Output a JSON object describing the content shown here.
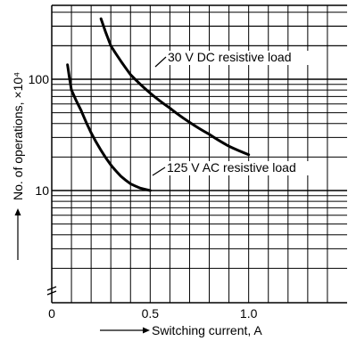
{
  "chart_data": {
    "type": "line",
    "xlabel": "Switching current, A",
    "ylabel": "No. of operations, ×10⁴",
    "x_scale": "linear",
    "y_scale": "log",
    "xlim": [
      0,
      1.5
    ],
    "ylim": [
      1,
      400
    ],
    "x_ticks": [
      {
        "value": 0,
        "label": "0"
      },
      {
        "value": 0.5,
        "label": "0.5"
      },
      {
        "value": 1.0,
        "label": "1.0"
      }
    ],
    "y_ticks": [
      {
        "value": 10,
        "label": "10"
      },
      {
        "value": 100,
        "label": "100"
      }
    ],
    "grid": true,
    "series": [
      {
        "name": "30 V DC resistive load",
        "color": "#000000",
        "x": [
          0.25,
          0.3,
          0.4,
          0.5,
          0.6,
          0.7,
          0.8,
          0.9,
          1.0
        ],
        "y": [
          350,
          200,
          110,
          75,
          55,
          41,
          32,
          25,
          21
        ]
      },
      {
        "name": "125 V AC resistive load",
        "color": "#000000",
        "x": [
          0.08,
          0.1,
          0.15,
          0.2,
          0.25,
          0.3,
          0.35,
          0.4,
          0.45,
          0.5
        ],
        "y": [
          135,
          80,
          52,
          33,
          23,
          17,
          13.5,
          11.5,
          10.5,
          10
        ]
      }
    ],
    "annotations": [
      {
        "text": "30 V DC resistive load",
        "series": 0
      },
      {
        "text": "125 V AC resistive load",
        "series": 1
      }
    ]
  }
}
